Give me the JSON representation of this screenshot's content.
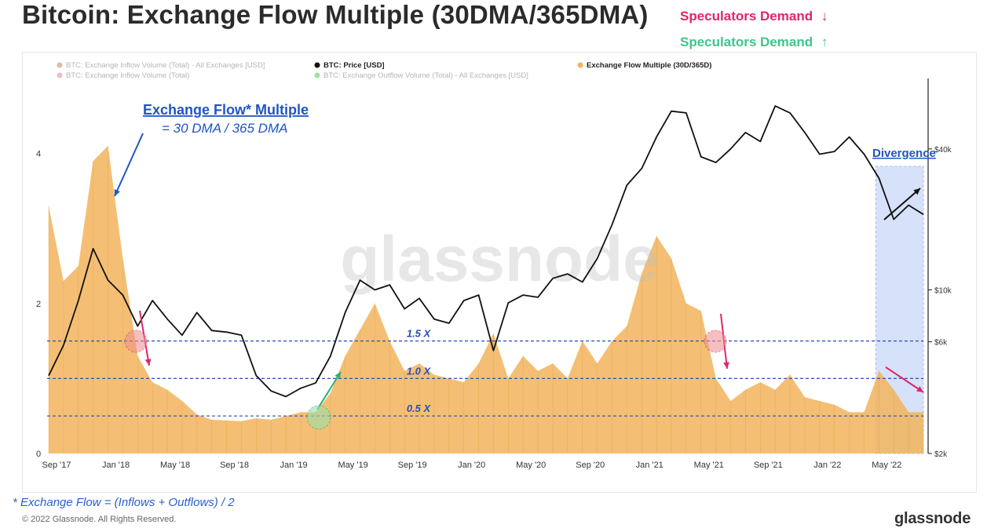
{
  "header": {
    "title": "Bitcoin: Exchange Flow Multiple (30DMA/365DMA)",
    "spec_down": "Speculators Demand",
    "spec_down_arrow": "↓",
    "spec_up": "Speculators Demand",
    "spec_up_arrow": "↑"
  },
  "legend": [
    {
      "label": "BTC: Exchange Inflow Volume (Total) - All Exchanges [USD]",
      "color": "#c9a27a",
      "faded": true
    },
    {
      "label": "BTC: Price [USD]",
      "color": "#111111",
      "faded": false
    },
    {
      "label": "Exchange Flow Multiple (30D/365D)",
      "color": "#f2b45c",
      "faded": false
    },
    {
      "label": "BTC: Exchange Inflow Volume (Total)",
      "color": "#e9a2a2",
      "faded": true
    },
    {
      "label": "BTC: Exchange Outflow Volume (Total) - All Exchanges [USD]",
      "color": "#7bd67b",
      "faded": true
    }
  ],
  "annotations": {
    "efm_title": "Exchange Flow* Multiple",
    "efm_sub": "= 30 DMA / 365 DMA",
    "divergence": "Divergence",
    "lines": [
      {
        "label": "1.5 X",
        "value": 1.5
      },
      {
        "label": "1.0 X",
        "value": 1.0
      },
      {
        "label": "0.5 X",
        "value": 0.5
      }
    ]
  },
  "watermark": "glassnode",
  "footer": {
    "note": "* Exchange Flow = (Inflows + Outflows) / 2",
    "copyright": "© 2022 Glassnode. All Rights Reserved.",
    "brand": "glassnode"
  },
  "colors": {
    "bar": "#f2b45c",
    "price": "#111111",
    "refline": "#2a4fb8",
    "annot_blue": "#1f55c4",
    "arrow_pink": "#e0256a",
    "arrow_green": "#2fae6c",
    "highlight": "#c7d9f8"
  },
  "chart_data": {
    "type": "area",
    "x_tick_labels": [
      "Sep '17",
      "Jan '18",
      "May '18",
      "Sep '18",
      "Jan '19",
      "May '19",
      "Sep '19",
      "Jan '20",
      "May '20",
      "Sep '20",
      "Jan '21",
      "May '21",
      "Sep '21",
      "Jan '22",
      "May '22"
    ],
    "y_left": {
      "ticks": [
        0,
        2,
        4
      ],
      "ylim": [
        0,
        5
      ]
    },
    "y_right": {
      "scale": "log",
      "ticks": [
        2000,
        6000,
        10000,
        40000
      ],
      "tick_labels": [
        "$2k",
        "$6k",
        "$10k",
        "$40k"
      ],
      "ylim": [
        2000,
        80000
      ]
    },
    "series": [
      {
        "name": "Exchange Flow Multiple (30D/365D)",
        "axis": "left",
        "x": [
          "2017-09",
          "2017-10",
          "2017-11",
          "2017-12",
          "2018-01",
          "2018-02",
          "2018-03",
          "2018-04",
          "2018-05",
          "2018-06",
          "2018-07",
          "2018-08",
          "2018-09",
          "2018-10",
          "2018-11",
          "2018-12",
          "2019-01",
          "2019-02",
          "2019-03",
          "2019-04",
          "2019-05",
          "2019-06",
          "2019-07",
          "2019-08",
          "2019-09",
          "2019-10",
          "2019-11",
          "2019-12",
          "2020-01",
          "2020-02",
          "2020-03",
          "2020-04",
          "2020-05",
          "2020-06",
          "2020-07",
          "2020-08",
          "2020-09",
          "2020-10",
          "2020-11",
          "2020-12",
          "2021-01",
          "2021-02",
          "2021-03",
          "2021-04",
          "2021-05",
          "2021-06",
          "2021-07",
          "2021-08",
          "2021-09",
          "2021-10",
          "2021-11",
          "2021-12",
          "2022-01",
          "2022-02",
          "2022-03",
          "2022-04",
          "2022-05",
          "2022-06",
          "2022-07",
          "2022-08"
        ],
        "values": [
          3.3,
          2.3,
          2.5,
          3.9,
          4.1,
          2.6,
          1.3,
          0.95,
          0.85,
          0.7,
          0.52,
          0.45,
          0.44,
          0.43,
          0.47,
          0.45,
          0.5,
          0.55,
          0.55,
          0.8,
          1.3,
          1.65,
          2.0,
          1.5,
          1.1,
          1.2,
          1.05,
          1.0,
          0.95,
          1.2,
          1.6,
          1.0,
          1.3,
          1.1,
          1.2,
          1.0,
          1.5,
          1.2,
          1.5,
          1.7,
          2.4,
          2.9,
          2.6,
          2.0,
          1.9,
          1.0,
          0.7,
          0.85,
          0.95,
          0.85,
          1.05,
          0.75,
          0.7,
          0.65,
          0.55,
          0.55,
          1.1,
          0.85,
          0.55,
          0.55
        ]
      },
      {
        "name": "BTC: Price [USD]",
        "axis": "right",
        "x": [
          "2017-09",
          "2017-10",
          "2017-11",
          "2017-12",
          "2018-01",
          "2018-02",
          "2018-03",
          "2018-04",
          "2018-05",
          "2018-06",
          "2018-07",
          "2018-08",
          "2018-09",
          "2018-10",
          "2018-11",
          "2018-12",
          "2019-01",
          "2019-02",
          "2019-03",
          "2019-04",
          "2019-05",
          "2019-06",
          "2019-07",
          "2019-08",
          "2019-09",
          "2019-10",
          "2019-11",
          "2019-12",
          "2020-01",
          "2020-02",
          "2020-03",
          "2020-04",
          "2020-05",
          "2020-06",
          "2020-07",
          "2020-08",
          "2020-09",
          "2020-10",
          "2020-11",
          "2020-12",
          "2021-01",
          "2021-02",
          "2021-03",
          "2021-04",
          "2021-05",
          "2021-06",
          "2021-07",
          "2021-08",
          "2021-09",
          "2021-10",
          "2021-11",
          "2021-12",
          "2022-01",
          "2022-02",
          "2022-03",
          "2022-04",
          "2022-05",
          "2022-06",
          "2022-07",
          "2022-08"
        ],
        "values": [
          4300,
          5800,
          9000,
          15000,
          11000,
          9500,
          7000,
          9000,
          7500,
          6400,
          8000,
          6700,
          6600,
          6400,
          4300,
          3700,
          3500,
          3800,
          4000,
          5200,
          8000,
          11000,
          10000,
          10500,
          8300,
          9200,
          7500,
          7200,
          9000,
          9500,
          5500,
          8800,
          9500,
          9300,
          11200,
          11700,
          10800,
          13600,
          19000,
          28000,
          33000,
          45000,
          58000,
          57000,
          37000,
          35000,
          40000,
          47000,
          43000,
          61000,
          57000,
          47000,
          38000,
          39000,
          45000,
          38000,
          30000,
          20000,
          23000,
          21000
        ]
      }
    ],
    "reference_lines": [
      1.5,
      1.0,
      0.5
    ],
    "legend_position": "top",
    "grid": false
  }
}
